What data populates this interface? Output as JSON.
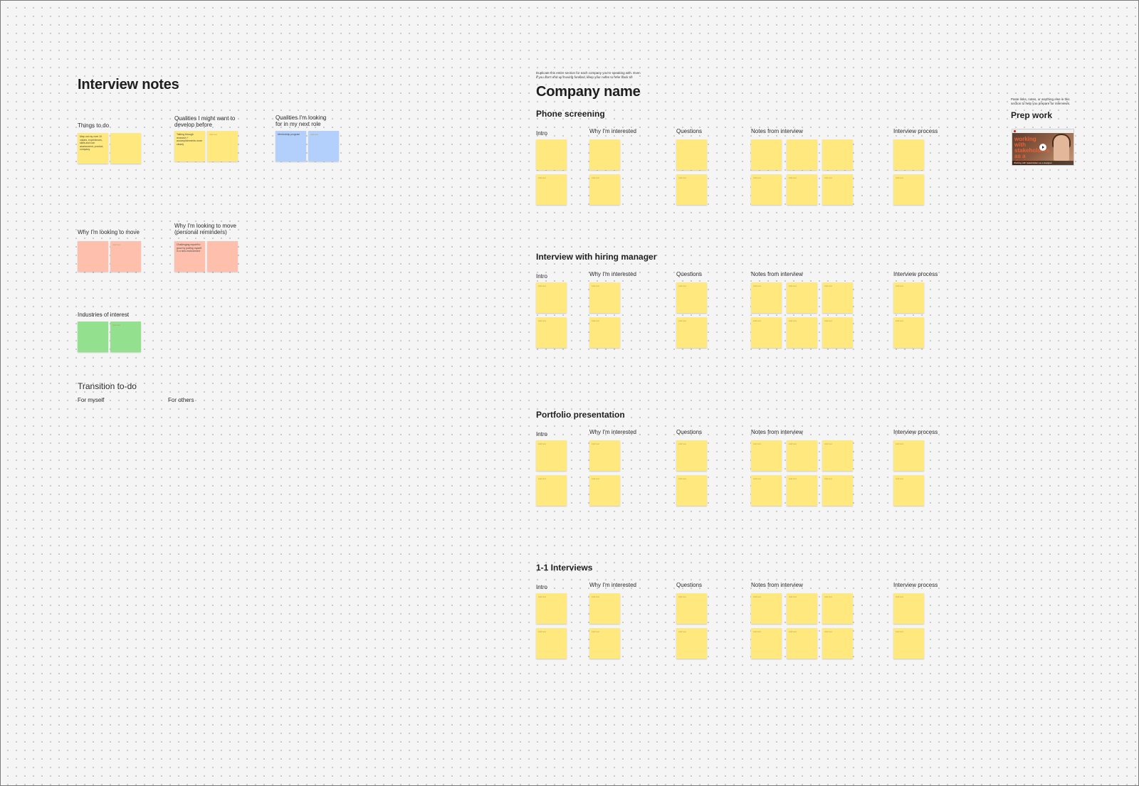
{
  "left": {
    "title": "Interview notes",
    "things_to_do": "Things to do",
    "things_note": "Map out my core 10 values, experiences, skills and use assessment, product, company",
    "qualities_develop": "Qualities I might want to develop before",
    "qualities_develop_note": "Talking through research + accomplishments more clearly",
    "qualities_looking": "Qualities I'm looking for in my next role",
    "qualities_looking_note": "Mentorship program",
    "why_move": "Why I'm looking to move",
    "why_move_personal": "Why I'm looking to move (personal reminders)",
    "why_move_personal_note": "Challenging myself to grow by putting myself in a new environment",
    "industries": "Industries of interest",
    "transition": "Transition to-do",
    "for_myself": "For myself",
    "for_others": "For others",
    "placeholder": "Add text"
  },
  "company": {
    "intro_text": "Duplicate this entire section for each company you're speaking with. Even if you don't end up moving forward, keep your notes to refer back to!",
    "title": "Company name",
    "col_intro": "Intro",
    "col_why": "Why I'm interested",
    "col_questions": "Questions",
    "col_notes": "Notes from interview",
    "col_process": "Interview process",
    "sections": [
      "Phone screening",
      "Interview with hiring manager",
      "Portfolio presentation",
      "1-1 Interviews"
    ]
  },
  "prep": {
    "intro_text": "Paste links, notes, or anything else in this section to help you prepare for interviews.",
    "title": "Prep work",
    "video_title": "working with stakeholders as a designer",
    "video_caption": "Working with stakeholders as a designer",
    "video_icon": "play-icon"
  },
  "colors": {
    "yellow": "#ffe97f",
    "blue": "#b3cffc",
    "salmon": "#ffbfad",
    "green": "#93e08f"
  }
}
